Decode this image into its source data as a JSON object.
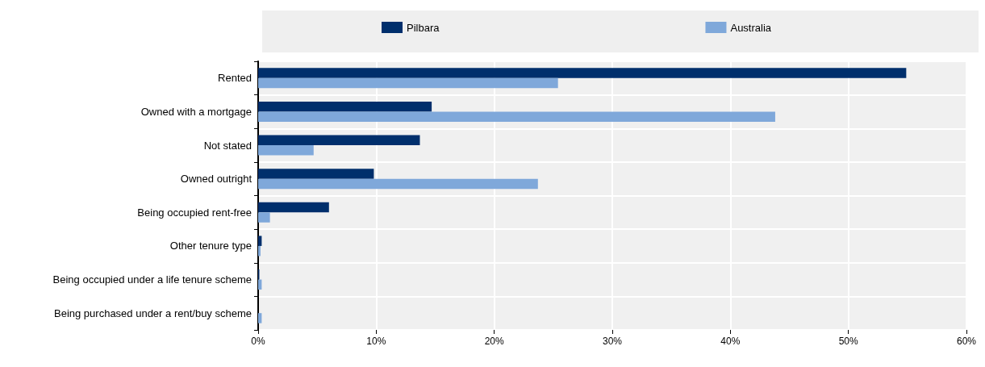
{
  "chart_data": {
    "type": "bar",
    "orientation": "horizontal",
    "categories": [
      "Rented",
      "Owned with a mortgage",
      "Not stated",
      "Owned outright",
      "Being occupied rent-free",
      "Other tenure type",
      "Being occupied under a life tenure scheme",
      "Being purchased under a rent/buy scheme"
    ],
    "series": [
      {
        "name": "Pilbara",
        "color": "#002f6c",
        "values": [
          54.9,
          14.7,
          13.7,
          9.8,
          6.0,
          0.3,
          0.1,
          0.0
        ]
      },
      {
        "name": "Australia",
        "color": "#7fa8da",
        "values": [
          25.4,
          43.8,
          4.7,
          23.7,
          1.0,
          0.2,
          0.3,
          0.3
        ]
      }
    ],
    "xlim": [
      0,
      60
    ],
    "xticks": [
      {
        "value": 0,
        "label": "0%"
      },
      {
        "value": 10,
        "label": "10%"
      },
      {
        "value": 20,
        "label": "20%"
      },
      {
        "value": 30,
        "label": "30%"
      },
      {
        "value": 40,
        "label": "40%"
      },
      {
        "value": 50,
        "label": "50%"
      },
      {
        "value": 60,
        "label": "60%"
      }
    ],
    "grid": true,
    "legend": "top"
  }
}
